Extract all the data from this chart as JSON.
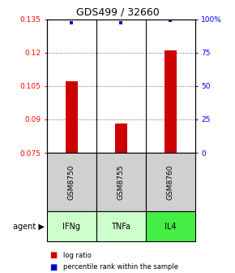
{
  "title": "GDS499 / 32660",
  "samples": [
    "GSM8750",
    "GSM8755",
    "GSM8760"
  ],
  "agents": [
    "IFNg",
    "TNFa",
    "IL4"
  ],
  "bar_values": [
    0.107,
    0.088,
    0.121
  ],
  "percentile_values": [
    97,
    97,
    99
  ],
  "bar_baseline": 0.075,
  "ylim": [
    0.075,
    0.135
  ],
  "yticks_left": [
    0.075,
    0.09,
    0.105,
    0.12,
    0.135
  ],
  "yticks_right": [
    0,
    25,
    50,
    75,
    100
  ],
  "ytick_labels_left": [
    "0.075",
    "0.09",
    "0.105",
    "0.12",
    "0.135"
  ],
  "ytick_labels_right": [
    "0",
    "25",
    "50",
    "75",
    "100%"
  ],
  "bar_color": "#cc0000",
  "dot_color": "#0000cc",
  "agent_colors": [
    "#ccffcc",
    "#ccffcc",
    "#44ee44"
  ],
  "sample_bg": "#d0d0d0",
  "grid_color": "#606060",
  "bar_width": 0.25
}
